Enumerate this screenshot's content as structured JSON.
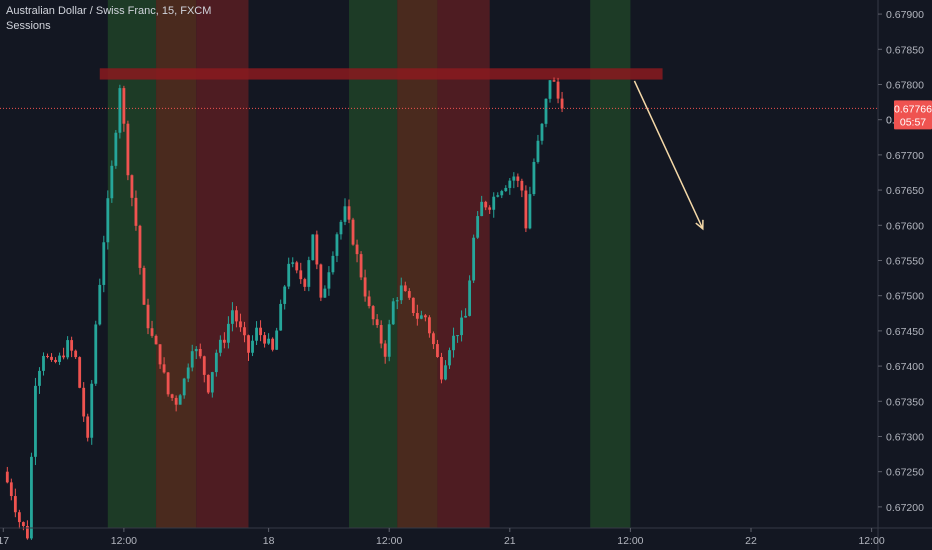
{
  "chart": {
    "symbol_title": "Australian Dollar / Swiss Franc, 15, FXCM",
    "indicator": "Sessions",
    "last_price": "0.67766",
    "countdown": "05:57",
    "partial_axis_label": "0."
  },
  "colors": {
    "background": "#131722",
    "up": "#26a69a",
    "down": "#ef5350",
    "session_green": "#1d3b26",
    "session_brown": "#4a2a1e",
    "session_red": "#4e1c22",
    "resistance_zone": "#8b1a1f",
    "arrow": "#f5d9a8",
    "axis_text": "#b2b5be",
    "last_price_tag": "#ef5350"
  },
  "chart_data": {
    "type": "candlestick",
    "title": "Australian Dollar / Swiss Franc, 15, FXCM",
    "ylim": [
      0.6717,
      0.6792
    ],
    "y_ticks": [
      "0.67900",
      "0.67850",
      "0.67800",
      "0.67750",
      "0.67700",
      "0.67650",
      "0.67600",
      "0.67550",
      "0.67500",
      "0.67450",
      "0.67400",
      "0.67350",
      "0.67300",
      "0.67250",
      "0.67200"
    ],
    "x_ticks": [
      "17",
      "12:00",
      "18",
      "12:00",
      "21",
      "12:00",
      "22",
      "12:00"
    ],
    "price_path": [
      [
        0,
        0.6725
      ],
      [
        2,
        0.6722
      ],
      [
        4,
        0.6718
      ],
      [
        6,
        0.6716
      ],
      [
        8,
        0.6738
      ],
      [
        10,
        0.6742
      ],
      [
        12,
        0.674
      ],
      [
        14,
        0.6741
      ],
      [
        16,
        0.6743
      ],
      [
        18,
        0.6741
      ],
      [
        20,
        0.6733
      ],
      [
        21,
        0.6729
      ],
      [
        23,
        0.6746
      ],
      [
        25,
        0.6758
      ],
      [
        27,
        0.6768
      ],
      [
        29,
        0.678
      ],
      [
        30,
        0.6774
      ],
      [
        31,
        0.6768
      ],
      [
        33,
        0.676
      ],
      [
        35,
        0.6748
      ],
      [
        37,
        0.6744
      ],
      [
        39,
        0.6741
      ],
      [
        41,
        0.6736
      ],
      [
        43,
        0.6735
      ],
      [
        45,
        0.6738
      ],
      [
        47,
        0.6743
      ],
      [
        49,
        0.6741
      ],
      [
        51,
        0.6737
      ],
      [
        53,
        0.6742
      ],
      [
        55,
        0.6744
      ],
      [
        57,
        0.6748
      ],
      [
        59,
        0.6745
      ],
      [
        61,
        0.6742
      ],
      [
        63,
        0.6745
      ],
      [
        65,
        0.6744
      ],
      [
        67,
        0.6742
      ],
      [
        69,
        0.6748
      ],
      [
        71,
        0.6755
      ],
      [
        73,
        0.6753
      ],
      [
        75,
        0.6752
      ],
      [
        77,
        0.6759
      ],
      [
        79,
        0.6749
      ],
      [
        81,
        0.6754
      ],
      [
        83,
        0.6759
      ],
      [
        85,
        0.6762
      ],
      [
        87,
        0.6758
      ],
      [
        89,
        0.6753
      ],
      [
        91,
        0.6748
      ],
      [
        93,
        0.6745
      ],
      [
        95,
        0.6742
      ],
      [
        97,
        0.6749
      ],
      [
        99,
        0.6751
      ],
      [
        101,
        0.6749
      ],
      [
        103,
        0.6747
      ],
      [
        105,
        0.6747
      ],
      [
        107,
        0.6743
      ],
      [
        109,
        0.6739
      ],
      [
        111,
        0.6743
      ],
      [
        113,
        0.6745
      ],
      [
        115,
        0.6747
      ],
      [
        117,
        0.6758
      ],
      [
        119,
        0.6763
      ],
      [
        121,
        0.6763
      ],
      [
        123,
        0.6765
      ],
      [
        125,
        0.6766
      ],
      [
        127,
        0.6767
      ],
      [
        129,
        0.6765
      ],
      [
        130,
        0.676
      ],
      [
        132,
        0.6769
      ],
      [
        134,
        0.6774
      ],
      [
        136,
        0.6781
      ],
      [
        137,
        0.678
      ],
      [
        138,
        0.6778
      ]
    ],
    "sessions": [
      {
        "start": 25.5,
        "end": 37.5,
        "type": "green"
      },
      {
        "start": 37.5,
        "end": 47.5,
        "type": "brown"
      },
      {
        "start": 47.5,
        "end": 60.5,
        "type": "red"
      },
      {
        "start": 85.5,
        "end": 97.5,
        "type": "green"
      },
      {
        "start": 97.5,
        "end": 107.5,
        "type": "brown"
      },
      {
        "start": 107.5,
        "end": 120.5,
        "type": "red"
      },
      {
        "start": 145.5,
        "end": 155.5,
        "type": "green"
      }
    ],
    "resistance_zone": {
      "y_top": 0.67823,
      "y_bottom": 0.67807,
      "x_start": 23.5,
      "x_end": 163.5
    },
    "last_price_value": 0.67766,
    "annotation_arrow": {
      "from": [
        156.5,
        0.67805
      ],
      "to": [
        173.5,
        0.67595
      ]
    }
  }
}
